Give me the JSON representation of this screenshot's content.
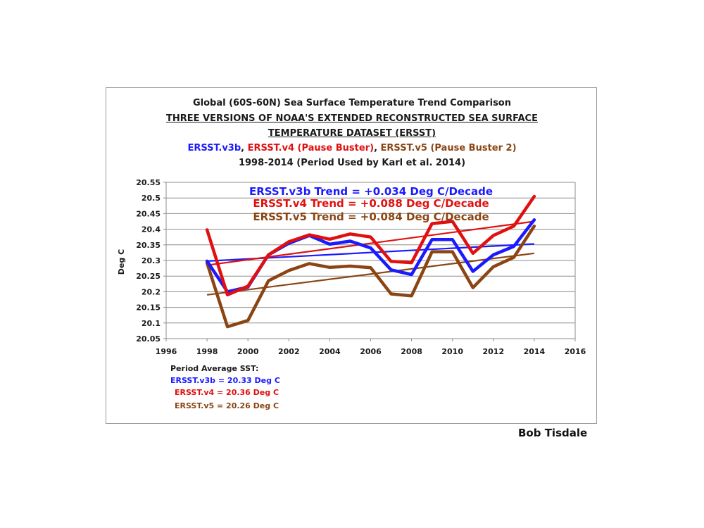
{
  "credit": "Bob Tisdale",
  "chart_data": {
    "type": "line",
    "title": "Global (60S-60N) Sea Surface Temperature Trend Comparison",
    "subtitle_lines": [
      "THREE VERSIONS OF NOAA'S EXTENDED RECONSTRUCTED SEA SURFACE",
      "TEMPERATURE DATASET (ERSST)"
    ],
    "legend_title": [
      {
        "text": "ERSST.v3b",
        "color": "#1a1aff"
      },
      {
        "text": ", ",
        "color": "#1a1a1a"
      },
      {
        "text": "ERSST.v4 (Pause Buster)",
        "color": "#e01010"
      },
      {
        "text": ", ",
        "color": "#1a1a1a"
      },
      {
        "text": "ERSST.v5 (Pause Buster 2)",
        "color": "#8b4513"
      }
    ],
    "period_label": "1998-2014 (Period Used by Karl et al. 2014)",
    "ylabel": "Deg C",
    "xlabel": "",
    "xlim": [
      1996,
      2016
    ],
    "ylim": [
      20.05,
      20.55
    ],
    "xticks": [
      "1996",
      "1998",
      "2000",
      "2002",
      "2004",
      "2006",
      "2008",
      "2010",
      "2012",
      "2014",
      "2016"
    ],
    "yticks": [
      "20.55",
      "20.5",
      "20.45",
      "20.4",
      "20.35",
      "20.3",
      "20.25",
      "20.2",
      "20.15",
      "20.1",
      "20.05"
    ],
    "grid": true,
    "x": [
      1998,
      1999,
      2000,
      2001,
      2002,
      2003,
      2004,
      2005,
      2006,
      2007,
      2008,
      2009,
      2010,
      2011,
      2012,
      2013,
      2014
    ],
    "series": [
      {
        "name": "ERSST.v3b",
        "color": "#1a1aff",
        "values": [
          20.298,
          20.2,
          20.215,
          20.318,
          20.355,
          20.38,
          20.352,
          20.362,
          20.34,
          20.27,
          20.255,
          20.367,
          20.367,
          20.265,
          20.318,
          20.345,
          20.43
        ],
        "trend": [
          20.298,
          20.353
        ]
      },
      {
        "name": "ERSST.v4",
        "color": "#e01010",
        "values": [
          20.398,
          20.19,
          20.218,
          20.318,
          20.36,
          20.382,
          20.368,
          20.385,
          20.375,
          20.297,
          20.293,
          20.418,
          20.425,
          20.323,
          20.38,
          20.41,
          20.505
        ],
        "trend": [
          20.285,
          20.425
        ]
      },
      {
        "name": "ERSST.v5",
        "color": "#8b4513",
        "values": [
          20.292,
          20.088,
          20.108,
          20.235,
          20.268,
          20.29,
          20.278,
          20.282,
          20.277,
          20.193,
          20.187,
          20.328,
          20.328,
          20.213,
          20.28,
          20.31,
          20.41
        ],
        "trend": [
          20.19,
          20.323
        ]
      }
    ],
    "annotations": [
      {
        "text": "ERSST.v3b Trend = +0.034 Deg C/Decade",
        "color": "#1a1aff"
      },
      {
        "text": "ERSST.v4 Trend = +0.088 Deg C/Decade",
        "color": "#e01010"
      },
      {
        "text": "ERSST.v5 Trend = +0.084 Deg C/Decade",
        "color": "#8b4513"
      }
    ],
    "period_average": {
      "heading": "Period Average SST:",
      "rows": [
        {
          "text": "ERSST.v3b  = 20.33 Deg C",
          "color": "#1a1aff"
        },
        {
          "text": "ERSST.v4  = 20.36 Deg C",
          "color": "#e01010"
        },
        {
          "text": "ERSST.v5  = 20.26 Deg C",
          "color": "#8b4513"
        }
      ]
    }
  }
}
